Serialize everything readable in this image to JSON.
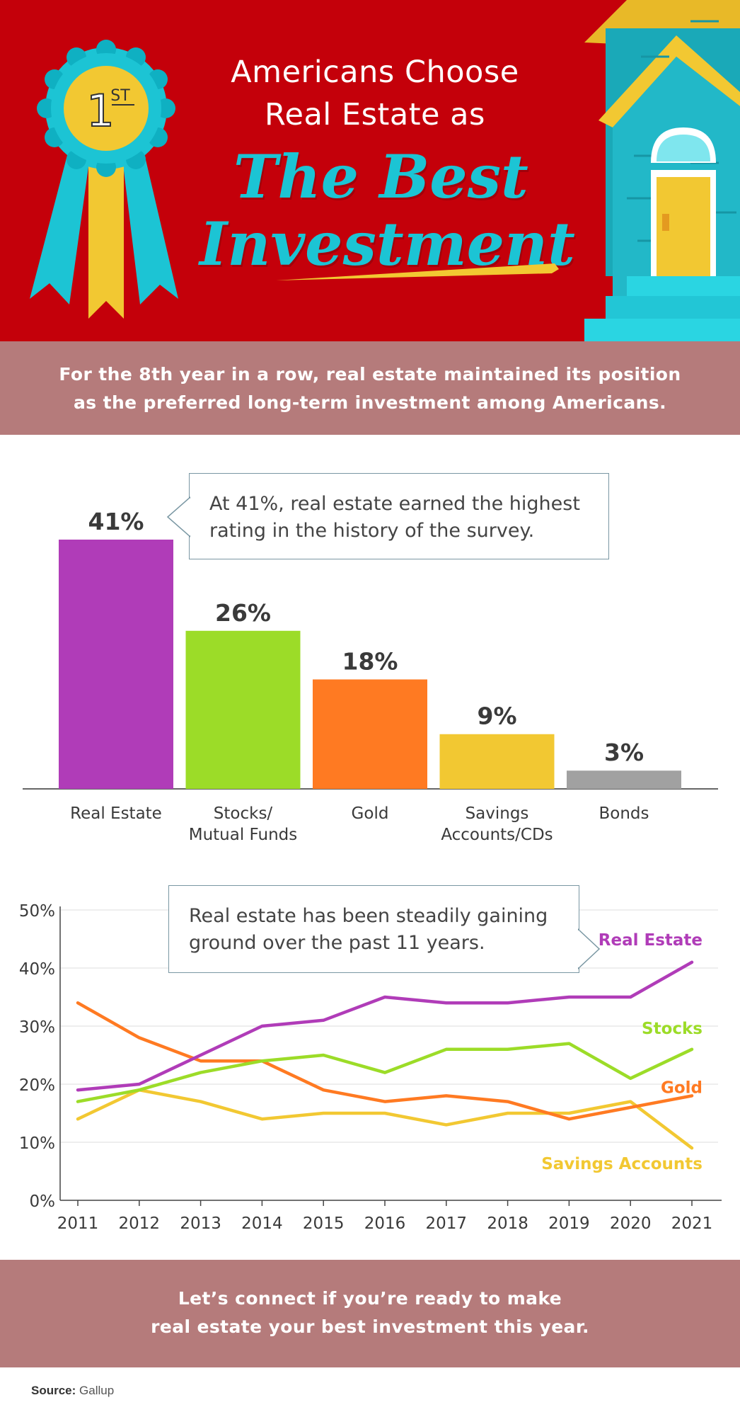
{
  "header": {
    "title_line1": "Americans Choose",
    "title_line2": "Real Estate as",
    "headline_line1": "The Best",
    "headline_line2": "Investment",
    "ribbon_label": "1",
    "ribbon_suffix": "ST"
  },
  "intro": {
    "line1": "For the 8th year in a row, real estate maintained its position",
    "line2": "as the preferred long-term investment among Americans."
  },
  "bar_callout": {
    "line1": "At 41%, real estate earned the highest",
    "line2": "rating in the history of the survey."
  },
  "line_callout": {
    "line1": "Real estate has been steadily gaining",
    "line2": "ground over the past 11 years."
  },
  "closing": {
    "line1": "Let’s connect if you’re ready to make",
    "line2": "real estate your best investment this year."
  },
  "source": {
    "label": "Source:",
    "value": "Gallup"
  },
  "colors": {
    "hero_bg": "#c4000a",
    "banner_bg": "#b57b7b",
    "accent_teal": "#1cc4d4",
    "real_estate": "#b03cb8",
    "stocks": "#9cdc28",
    "gold": "#ff7a22",
    "savings": "#f2c832",
    "bonds": "#a1a1a1"
  },
  "chart_data": [
    {
      "type": "bar",
      "categories": [
        [
          "Real Estate"
        ],
        [
          "Stocks/",
          "Mutual Funds"
        ],
        [
          "Gold"
        ],
        [
          "Savings",
          "Accounts/CDs"
        ],
        [
          "Bonds"
        ]
      ],
      "values": [
        41,
        26,
        18,
        9,
        3
      ],
      "value_labels": [
        "41%",
        "26%",
        "18%",
        "9%",
        "3%"
      ],
      "colors": [
        "#b03cb8",
        "#9cdc28",
        "#ff7a22",
        "#f2c832",
        "#a1a1a1"
      ],
      "ylim": [
        0,
        41
      ]
    },
    {
      "type": "line",
      "x": [
        "2011",
        "2012",
        "2013",
        "2014",
        "2015",
        "2016",
        "2017",
        "2018",
        "2019",
        "2020",
        "2021"
      ],
      "yticks": [
        "0%",
        "10%",
        "20%",
        "30%",
        "40%",
        "50%"
      ],
      "ylim": [
        0,
        50
      ],
      "grid": true,
      "series": [
        {
          "name": "Real Estate",
          "color": "#b03cb8",
          "values": [
            19,
            20,
            25,
            30,
            31,
            35,
            34,
            34,
            35,
            35,
            41
          ]
        },
        {
          "name": "Stocks",
          "color": "#9cdc28",
          "values": [
            17,
            19,
            22,
            24,
            25,
            22,
            26,
            26,
            27,
            21,
            26
          ]
        },
        {
          "name": "Gold",
          "color": "#ff7a22",
          "values": [
            34,
            28,
            24,
            24,
            19,
            17,
            18,
            17,
            14,
            16,
            18
          ]
        },
        {
          "name": "Savings Accounts",
          "color": "#f2c832",
          "values": [
            14,
            19,
            17,
            14,
            15,
            15,
            13,
            15,
            15,
            17,
            9
          ]
        }
      ]
    }
  ]
}
